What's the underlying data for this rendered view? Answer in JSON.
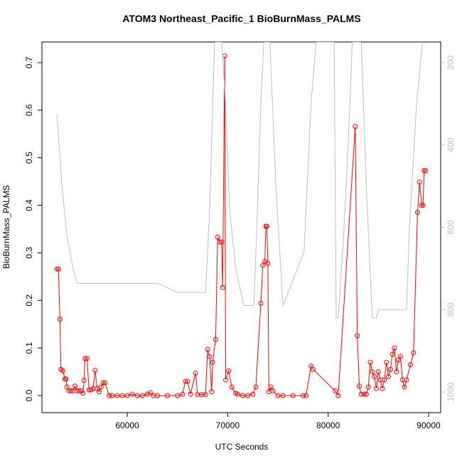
{
  "chart_data": {
    "type": "line",
    "title": "ATOM3 Northeast_Pacific_1 BioBurnMass_PALMS",
    "x_label": "UTC Seconds",
    "y_label": "BioBurnMass_PALMS",
    "xlim": [
      51508,
      91203
    ],
    "xticks": [
      60000,
      70000,
      80000,
      90000
    ],
    "ylim": [
      -0.0359,
      0.7434
    ],
    "yticks": [
      {
        "value": 0,
        "label": "0.0"
      },
      0.1,
      0.2,
      0.3,
      0.4,
      0.5,
      0.6,
      0.7
    ],
    "y2lim": [
      1050,
      150
    ],
    "y2ticks": [
      200,
      400,
      600,
      800,
      1000
    ],
    "series": [
      {
        "color": "#ff0000",
        "marker": "circle",
        "x": [
          53000,
          53150,
          53300,
          53400,
          53600,
          53800,
          53900,
          54000,
          54200,
          54400,
          54600,
          54800,
          55000,
          55200,
          55400,
          55600,
          55700,
          55800,
          56000,
          56200,
          56400,
          56600,
          56800,
          57000,
          57200,
          57400,
          57600,
          57800,
          58200,
          58500,
          59000,
          59500,
          60000,
          60500,
          61000,
          61500,
          62000,
          62300,
          62600,
          63000,
          64000,
          65000,
          65500,
          65800,
          66000,
          66300,
          66800,
          67000,
          67400,
          67800,
          68000,
          68200,
          68400,
          68500,
          68800,
          69000,
          69200,
          69400,
          69500,
          69700,
          69800,
          70100,
          70400,
          70800,
          71000,
          71500,
          72000,
          72500,
          72800,
          73300,
          73500,
          73700,
          73800,
          73900,
          74000,
          74100,
          74300,
          74500,
          75000,
          75500,
          76500,
          77500,
          77800,
          78300,
          78500,
          80700,
          81000,
          82700,
          82900,
          83100,
          83300,
          83600,
          83800,
          84000,
          84200,
          84400,
          84600,
          84800,
          85000,
          85200,
          85400,
          85600,
          85800,
          86000,
          86200,
          86400,
          86600,
          86800,
          87000,
          87200,
          87400,
          87600,
          87800,
          88200,
          88500,
          88900,
          89100,
          89300,
          89450,
          89550,
          89700
        ],
        "values": [
          0.266,
          0.266,
          0.16,
          0.055,
          0.052,
          0.035,
          0.035,
          0.018,
          0.01,
          0.01,
          0.01,
          0.02,
          0.01,
          0.01,
          0.01,
          0.005,
          0.032,
          0.078,
          0.078,
          0.012,
          0.012,
          0.015,
          0.053,
          0.015,
          0.008,
          0.018,
          0.027,
          0.027,
          0,
          0,
          0,
          0,
          0,
          0.003,
          0,
          0,
          0.003,
          0.006,
          0,
          0,
          0,
          0,
          0.003,
          0.03,
          0.03,
          0.003,
          0.047,
          0.002,
          0.002,
          0.002,
          0.097,
          0.082,
          0.008,
          0.07,
          0.118,
          0.333,
          0.323,
          0.323,
          0.227,
          0.714,
          0.033,
          0.052,
          0.018,
          0.005,
          0.003,
          0,
          0,
          0.003,
          0.018,
          0.194,
          0.274,
          0.282,
          0.356,
          0.356,
          0.278,
          0.008,
          0.018,
          0.01,
          0,
          0,
          0,
          0,
          0,
          0.062,
          0.055,
          0.01,
          0,
          0.566,
          0.126,
          0.02,
          0.003,
          0.003,
          0.003,
          0.018,
          0.07,
          0.05,
          0.04,
          0.015,
          0.05,
          0.033,
          0.015,
          0.033,
          0.07,
          0.04,
          0.055,
          0.087,
          0.1,
          0.05,
          0.075,
          0.082,
          0.033,
          0.018,
          0.033,
          0.065,
          0.09,
          0.385,
          0.449,
          0.4,
          0.4,
          0.473,
          0.473
        ]
      },
      {
        "color": "#bebebe",
        "axis": "y2",
        "x": [
          53000,
          53500,
          54000,
          54600,
          55000,
          58000,
          63000,
          65000,
          67800,
          68200,
          68700,
          69400,
          69800,
          70200,
          70800,
          71600,
          72600,
          72900,
          73300,
          73600,
          74200,
          74800,
          75500,
          77600,
          78300,
          78800,
          80600,
          80800,
          81000,
          81500,
          82000,
          82400,
          83300,
          83800,
          84400,
          84800,
          85000,
          87800,
          88100,
          88800,
          89400
        ],
        "values": [
          326,
          500,
          620,
          700,
          736,
          736,
          736,
          758,
          758,
          560,
          150,
          150,
          300,
          560,
          700,
          790,
          790,
          600,
          300,
          150,
          150,
          500,
          790,
          660,
          300,
          150,
          150,
          820,
          820,
          640,
          400,
          150,
          150,
          500,
          820,
          820,
          800,
          800,
          600,
          300,
          150
        ]
      }
    ]
  }
}
